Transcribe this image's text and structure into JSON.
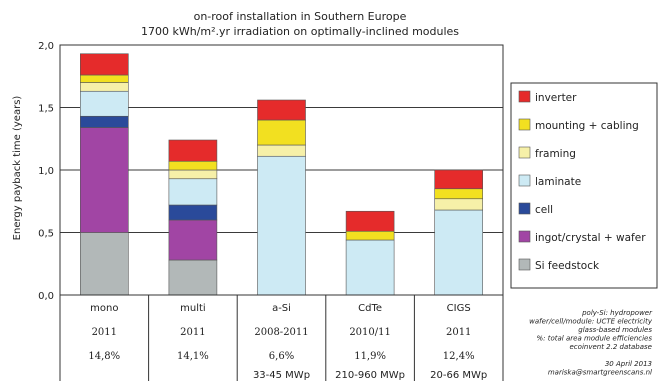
{
  "chart_data": {
    "type": "bar",
    "stacked": true,
    "title": "on-roof installation in Southern Europe",
    "subtitle": "1700 kWh/m².yr irradiation on optimally-inclined modules",
    "ylabel": "Energy payback time (years)",
    "xlabel": "",
    "ylim": [
      0,
      2.0
    ],
    "yticks": [
      "0,0",
      "0,5",
      "1,0",
      "1,5",
      "2,0"
    ],
    "grid": true,
    "legend_position": "right",
    "categories": [
      "mono",
      "multi",
      "a-Si",
      "CdTe",
      "CIGS"
    ],
    "category_year": [
      "2011",
      "2011",
      "2008-2011",
      "2010/11",
      "2011"
    ],
    "category_efficiency": [
      "14,8%",
      "14,1%",
      "6,6%",
      "11,9%",
      "12,4%"
    ],
    "category_capacity": [
      "",
      "",
      "33-45 MWp",
      "210-960 MWp",
      "20-66 MWp"
    ],
    "series": [
      {
        "name": "Si feedstock",
        "color": "#b2b8b8",
        "values": [
          0.5,
          0.28,
          0,
          0,
          0
        ]
      },
      {
        "name": "ingot/crystal + wafer",
        "color": "#a145a4",
        "values": [
          0.84,
          0.32,
          0,
          0,
          0
        ]
      },
      {
        "name": "cell",
        "color": "#2a4a9a",
        "values": [
          0.09,
          0.12,
          0,
          0,
          0
        ]
      },
      {
        "name": "laminate",
        "color": "#cdeaf4",
        "values": [
          0.2,
          0.21,
          1.11,
          0.44,
          0.68
        ]
      },
      {
        "name": "framing",
        "color": "#f6f0a8",
        "values": [
          0.07,
          0.07,
          0.09,
          0,
          0.09
        ]
      },
      {
        "name": "mounting + cabling",
        "color": "#f2e020",
        "values": [
          0.06,
          0.07,
          0.2,
          0.07,
          0.08
        ]
      },
      {
        "name": "inverter",
        "color": "#e52b2b",
        "values": [
          0.17,
          0.17,
          0.16,
          0.16,
          0.15
        ]
      }
    ],
    "legend_order": [
      "inverter",
      "mounting + cabling",
      "framing",
      "laminate",
      "cell",
      "ingot/crystal + wafer",
      "Si feedstock"
    ],
    "notes": [
      "poly-Si: hydropower",
      "wafer/cell/module: UCTE electricity",
      "glass-based modules",
      "%: total area module efficiencies",
      "ecoinvent 2.2 database",
      "",
      "30 April 2013",
      "mariska@smartgreenscans.nl"
    ]
  }
}
